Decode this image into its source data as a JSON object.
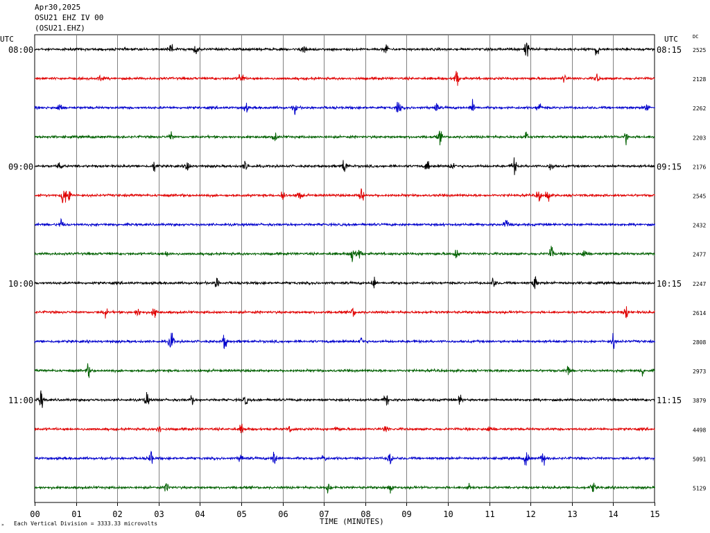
{
  "header": {
    "date": "Apr30,2025",
    "station": "OSU21 EHZ IV 00",
    "channel": "(OSU21.EHZ)"
  },
  "left_axis_title": "UTC",
  "right_axis_title": "UTC",
  "dc_title": "DC",
  "footer": {
    "mark": "»",
    "scale_note": "Each Vertical Division = 3333.33 microvolts"
  },
  "colors": {
    "trace_cycle": [
      "#000000",
      "#e00000",
      "#0000cc",
      "#006000"
    ],
    "grid": "#808080"
  },
  "chart_data": {
    "type": "line",
    "xlabel": "TIME (MINUTES)",
    "xlim": [
      0,
      15
    ],
    "x_ticks": [
      "00",
      "01",
      "02",
      "03",
      "04",
      "05",
      "06",
      "07",
      "08",
      "09",
      "10",
      "11",
      "12",
      "13",
      "14",
      "15"
    ],
    "rows": [
      {
        "left": "08:00",
        "right": "08:15",
        "dc": "2525"
      },
      {
        "left": "",
        "right": "",
        "dc": "2128"
      },
      {
        "left": "",
        "right": "",
        "dc": "2262"
      },
      {
        "left": "",
        "right": "",
        "dc": "2203"
      },
      {
        "left": "09:00",
        "right": "09:15",
        "dc": "2176"
      },
      {
        "left": "",
        "right": "",
        "dc": "2545"
      },
      {
        "left": "",
        "right": "",
        "dc": "2432"
      },
      {
        "left": "",
        "right": "",
        "dc": "2477"
      },
      {
        "left": "10:00",
        "right": "10:15",
        "dc": "2247"
      },
      {
        "left": "",
        "right": "",
        "dc": "2614"
      },
      {
        "left": "",
        "right": "",
        "dc": "2808"
      },
      {
        "left": "",
        "right": "",
        "dc": "2973"
      },
      {
        "left": "11:00",
        "right": "11:15",
        "dc": "3879"
      },
      {
        "left": "",
        "right": "",
        "dc": "4498"
      },
      {
        "left": "",
        "right": "",
        "dc": "5091"
      },
      {
        "left": "",
        "right": "",
        "dc": "5129"
      }
    ],
    "events": [
      [
        [
          3.3,
          10
        ],
        [
          3.9,
          7
        ],
        [
          6.5,
          9
        ],
        [
          8.5,
          7
        ],
        [
          11.9,
          12
        ],
        [
          13.6,
          10
        ]
      ],
      [
        [
          1.6,
          6
        ],
        [
          5.0,
          11
        ],
        [
          10.2,
          14
        ],
        [
          12.8,
          6
        ],
        [
          13.6,
          6
        ]
      ],
      [
        [
          0.6,
          7
        ],
        [
          5.1,
          7
        ],
        [
          6.3,
          7
        ],
        [
          8.8,
          9
        ],
        [
          9.7,
          8
        ],
        [
          10.6,
          9
        ],
        [
          12.2,
          8
        ],
        [
          14.8,
          7
        ]
      ],
      [
        [
          3.3,
          6
        ],
        [
          5.8,
          6
        ],
        [
          9.8,
          9
        ],
        [
          11.9,
          7
        ],
        [
          14.3,
          9
        ]
      ],
      [
        [
          0.6,
          6
        ],
        [
          2.9,
          8
        ],
        [
          3.7,
          8
        ],
        [
          5.1,
          7
        ],
        [
          7.5,
          13
        ],
        [
          9.5,
          8
        ],
        [
          10.1,
          7
        ],
        [
          11.6,
          12
        ],
        [
          12.5,
          6
        ]
      ],
      [
        [
          0.7,
          17
        ],
        [
          0.85,
          11
        ],
        [
          6.0,
          8
        ],
        [
          6.4,
          8
        ],
        [
          7.9,
          12
        ],
        [
          12.2,
          9
        ],
        [
          12.4,
          10
        ]
      ],
      [
        [
          0.65,
          9
        ],
        [
          11.4,
          8
        ]
      ],
      [
        [
          3.2,
          5
        ],
        [
          7.7,
          15
        ],
        [
          7.85,
          10
        ],
        [
          10.2,
          7
        ],
        [
          12.5,
          10
        ],
        [
          13.3,
          7
        ]
      ],
      [
        [
          4.4,
          9
        ],
        [
          8.2,
          8
        ],
        [
          11.1,
          7
        ],
        [
          12.1,
          11
        ]
      ],
      [
        [
          1.7,
          7
        ],
        [
          2.5,
          6
        ],
        [
          2.9,
          8
        ],
        [
          7.7,
          6
        ],
        [
          14.3,
          8
        ]
      ],
      [
        [
          3.3,
          15
        ],
        [
          4.6,
          11
        ],
        [
          7.9,
          6
        ],
        [
          14.0,
          9
        ]
      ],
      [
        [
          1.3,
          9
        ],
        [
          12.9,
          7
        ],
        [
          14.7,
          6
        ]
      ],
      [
        [
          0.15,
          14
        ],
        [
          2.7,
          9
        ],
        [
          3.8,
          7
        ],
        [
          5.1,
          6
        ],
        [
          8.5,
          10
        ],
        [
          10.3,
          7
        ]
      ],
      [
        [
          3.0,
          5
        ],
        [
          5.0,
          6
        ],
        [
          6.2,
          5
        ],
        [
          7.3,
          5
        ],
        [
          8.5,
          5
        ],
        [
          11.0,
          5
        ]
      ],
      [
        [
          2.8,
          11
        ],
        [
          5.0,
          8
        ],
        [
          5.8,
          14
        ],
        [
          7.0,
          6
        ],
        [
          8.6,
          11
        ],
        [
          11.9,
          14
        ],
        [
          12.3,
          12
        ]
      ],
      [
        [
          3.2,
          7
        ],
        [
          7.1,
          8
        ],
        [
          8.6,
          6
        ],
        [
          10.5,
          7
        ],
        [
          13.5,
          7
        ]
      ]
    ]
  }
}
